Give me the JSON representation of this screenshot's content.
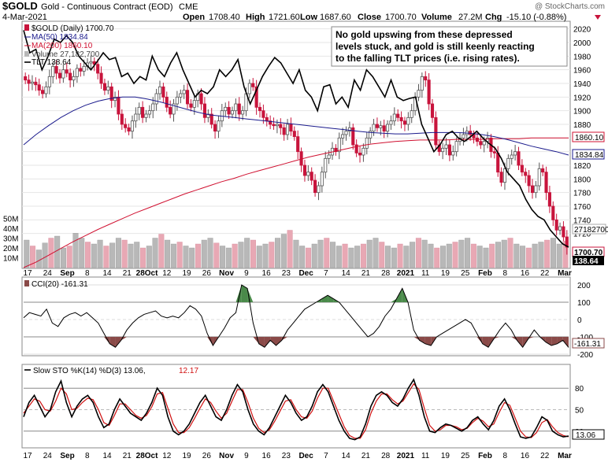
{
  "header": {
    "symbol": "$GOLD",
    "name": "Gold - Continuous Contract (EOD)",
    "exchange": "CME",
    "date": "4-Mar-2021",
    "open_label": "Open",
    "open": "1708.40",
    "high_label": "High",
    "high": "1721.60",
    "low_label": "Low",
    "low": "1687.60",
    "close_label": "Close",
    "close": "1700.70",
    "volume_label": "Volume",
    "volume": "27.2M",
    "chg_label": "Chg",
    "chg": "-15.10 (-0.88%)",
    "chg_icon": "down-triangle",
    "watermark": "@ StockCharts.com"
  },
  "legend": {
    "price": "$GOLD (Daily) 1700.70",
    "ma50": "MA(50) 1834.84",
    "ma200": "MA(200) 1860.10",
    "volume": "Volume 27,182,700",
    "tlt": "TLT 138.64"
  },
  "annotation": {
    "line1": "No gold upswing from these depressed",
    "line2": "levels stuck, and gold is still keenly reacting",
    "line3": "to the falling TLT prices (i.e. rising rates)."
  },
  "cci_label": "CCI(20) -161.31",
  "sto_label": "Slow STO %K(14) %D(3) 13.06,",
  "sto_label_d": "12.17",
  "colors": {
    "up": "#808080",
    "down": "#c8143c",
    "ma50": "#1a1a8c",
    "ma200": "#d01030",
    "tlt": "#000000",
    "vol_up": "#b8b8b8",
    "vol_down": "#e8a8b4",
    "cci_pos": "#4a8a4a",
    "cci_neg": "#8a4a48",
    "sto_d": "#d01010",
    "sto_k": "#000000"
  },
  "chart_data": [
    {
      "type": "candlestick",
      "title": "$GOLD (Daily) 1700.70",
      "ylim": [
        1670,
        2030
      ],
      "y_ticks": [
        2020,
        2000,
        1980,
        1960,
        1940,
        1920,
        1900,
        1880,
        1860,
        1840,
        1820,
        1800,
        1780,
        1760,
        1740,
        1720
      ],
      "x_tick_labels": [
        "17",
        "24",
        "Sep",
        "8",
        "14",
        "21",
        "28Oct",
        "12",
        "19",
        "26",
        "Nov",
        "9",
        "16",
        "23",
        "Dec",
        "7",
        "14",
        "21",
        "28",
        "2021",
        "11",
        "19",
        "25",
        "Feb",
        "8",
        "16",
        "22",
        "Mar"
      ],
      "close_series": [
        1945,
        1940,
        1942,
        1938,
        1930,
        1925,
        1935,
        1950,
        1965,
        1955,
        1948,
        1960,
        1955,
        1945,
        1950,
        1962,
        1958,
        1965,
        1970,
        1972,
        1968,
        1955,
        1940,
        1930,
        1935,
        1915,
        1920,
        1895,
        1880,
        1875,
        1870,
        1885,
        1895,
        1905,
        1890,
        1895,
        1900,
        1910,
        1925,
        1935,
        1920,
        1905,
        1895,
        1910,
        1920,
        1925,
        1930,
        1910,
        1905,
        1915,
        1925,
        1910,
        1890,
        1895,
        1880,
        1870,
        1885,
        1900,
        1905,
        1895,
        1900,
        1910,
        1895,
        1900,
        1925,
        1940,
        1935,
        1905,
        1900,
        1890,
        1885,
        1880,
        1878,
        1880,
        1875,
        1865,
        1880,
        1870,
        1862,
        1840,
        1820,
        1805,
        1810,
        1798,
        1780,
        1790,
        1810,
        1830,
        1835,
        1845,
        1840,
        1860,
        1865,
        1870,
        1875,
        1850,
        1838,
        1835,
        1845,
        1860,
        1870,
        1880,
        1875,
        1878,
        1870,
        1880,
        1885,
        1895,
        1890,
        1885,
        1880,
        1890,
        1900,
        1920,
        1930,
        1950,
        1945,
        1910,
        1890,
        1850,
        1840,
        1845,
        1850,
        1835,
        1840,
        1855,
        1860,
        1865,
        1870,
        1865,
        1860,
        1855,
        1850,
        1855,
        1860,
        1840,
        1838,
        1810,
        1795,
        1815,
        1830,
        1835,
        1840,
        1820,
        1810,
        1805,
        1790,
        1780,
        1790,
        1815,
        1810,
        1780,
        1760,
        1740,
        1725,
        1730,
        1715,
        1700
      ]
    },
    {
      "type": "line",
      "title": "MA(50) 1834.84",
      "values": [
        1850,
        1865,
        1878,
        1890,
        1900,
        1908,
        1914,
        1918,
        1920,
        1920,
        1917,
        1913,
        1908,
        1903,
        1898,
        1894,
        1892,
        1890,
        1888,
        1886,
        1884,
        1882,
        1880,
        1878,
        1876,
        1874,
        1872,
        1870,
        1868,
        1867,
        1866,
        1866,
        1867,
        1868,
        1868,
        1868,
        1867,
        1865,
        1862,
        1858,
        1853,
        1848,
        1844,
        1840,
        1835
      ]
    },
    {
      "type": "line",
      "title": "MA(200) 1860.10",
      "values": [
        1670,
        1678,
        1688,
        1698,
        1708,
        1717,
        1726,
        1734,
        1742,
        1750,
        1757,
        1764,
        1771,
        1778,
        1784,
        1790,
        1796,
        1801,
        1807,
        1812,
        1817,
        1822,
        1827,
        1832,
        1836,
        1840,
        1844,
        1848,
        1851,
        1853,
        1855,
        1856,
        1857,
        1857,
        1857,
        1858,
        1858,
        1858,
        1859,
        1859,
        1859,
        1860,
        1860,
        1860,
        1860
      ]
    },
    {
      "type": "line",
      "title": "TLT 138.64",
      "values": [
        2018,
        1985,
        1990,
        1960,
        1980,
        2005,
        2000,
        2010,
        2000,
        1980,
        1970,
        1960,
        1972,
        1985,
        1975,
        1978,
        1950,
        1955,
        1940,
        1950,
        1945,
        1980,
        1960,
        1950,
        1970,
        1985,
        1960,
        1940,
        1920,
        1930,
        1925,
        1935,
        1960,
        1950,
        1960,
        1975,
        1935,
        1910,
        1930,
        1950,
        1965,
        1978,
        1970,
        1955,
        1940,
        1960,
        1930,
        1920,
        1900,
        1935,
        1938,
        1910,
        1920,
        1905,
        1945,
        1930,
        1960,
        1950,
        1935,
        1920,
        1945,
        1920,
        1915,
        1918,
        1920,
        1880,
        1860,
        1840,
        1850,
        1865,
        1870,
        1860,
        1855,
        1862,
        1870,
        1860,
        1852,
        1845,
        1830,
        1810,
        1800,
        1790,
        1770,
        1755,
        1745,
        1740,
        1725,
        1715,
        1705,
        1700
      ],
      "last": 138.64
    },
    {
      "type": "bar",
      "title": "Volume 27,182,700",
      "ylabel": "",
      "y_ticks": [
        "50M",
        "40M",
        "30M",
        "20M",
        "10M"
      ],
      "ylim": [
        0,
        60
      ],
      "values": [
        28,
        22,
        18,
        25,
        30,
        32,
        20,
        22,
        35,
        30,
        26,
        24,
        28,
        22,
        25,
        30,
        28,
        24,
        26,
        20,
        22,
        30,
        34,
        28,
        24,
        26,
        22,
        20,
        24,
        28,
        30,
        25,
        22,
        20,
        24,
        26,
        30,
        28,
        22,
        24,
        26,
        30,
        34,
        38,
        28,
        22,
        20,
        24,
        28,
        30,
        26,
        22,
        24,
        20,
        22,
        24,
        28,
        30,
        26,
        22,
        20,
        24,
        22,
        26,
        30,
        28,
        24,
        20,
        22,
        24,
        26,
        28,
        30,
        24,
        22,
        20,
        24,
        26,
        28,
        30,
        24,
        22,
        20,
        24,
        26,
        28,
        30,
        24,
        27
      ],
      "last_label": "27182700"
    },
    {
      "type": "area",
      "title": "CCI(20) -161.31",
      "ylim": [
        -200,
        200
      ],
      "y_ticks": [
        200,
        100,
        0,
        -100,
        -200
      ],
      "values": [
        10,
        40,
        30,
        20,
        60,
        -20,
        -40,
        10,
        30,
        40,
        20,
        40,
        10,
        -20,
        -80,
        -140,
        -160,
        -120,
        -60,
        -20,
        10,
        30,
        40,
        50,
        20,
        10,
        20,
        10,
        40,
        80,
        60,
        20,
        -80,
        -150,
        -100,
        -50,
        10,
        40,
        200,
        180,
        -20,
        -140,
        -160,
        -120,
        -150,
        -120,
        -60,
        -20,
        20,
        60,
        80,
        100,
        120,
        140,
        120,
        100,
        60,
        20,
        -20,
        -60,
        -100,
        -80,
        -40,
        20,
        60,
        120,
        180,
        100,
        -60,
        -120,
        -140,
        -150,
        -100,
        -80,
        -60,
        -40,
        -20,
        0,
        -20,
        -80,
        -140,
        -160,
        -110,
        -60,
        -20,
        -60,
        -120,
        -160,
        -110,
        -60,
        -100,
        -130,
        -150,
        -140,
        -120,
        -161
      ],
      "last": -161.31
    },
    {
      "type": "line",
      "title": "Slow STO %K(14) %D(3) 13.06, 12.17",
      "ylim": [
        0,
        100
      ],
      "y_ticks": [
        80,
        50,
        20
      ],
      "series": [
        {
          "name": "%K(14)",
          "values": [
            40,
            60,
            70,
            55,
            40,
            50,
            75,
            90,
            60,
            40,
            55,
            65,
            70,
            60,
            40,
            25,
            30,
            50,
            65,
            55,
            45,
            40,
            35,
            45,
            60,
            80,
            70,
            40,
            20,
            15,
            20,
            30,
            45,
            60,
            70,
            55,
            40,
            35,
            50,
            70,
            85,
            75,
            50,
            30,
            20,
            15,
            25,
            40,
            55,
            70,
            60,
            45,
            35,
            40,
            55,
            75,
            85,
            75,
            55,
            35,
            20,
            10,
            8,
            12,
            30,
            55,
            70,
            75,
            70,
            60,
            55,
            65,
            80,
            92,
            70,
            40,
            20,
            18,
            25,
            30,
            28,
            24,
            20,
            25,
            35,
            40,
            30,
            22,
            35,
            55,
            65,
            50,
            30,
            12,
            10,
            12,
            25,
            40,
            35,
            20,
            15,
            12,
            13.06
          ]
        },
        {
          "name": "%D(3)",
          "values": [
            45,
            55,
            65,
            62,
            50,
            48,
            62,
            80,
            72,
            50,
            52,
            60,
            66,
            64,
            50,
            32,
            28,
            42,
            58,
            58,
            50,
            42,
            38,
            42,
            54,
            72,
            74,
            52,
            30,
            18,
            18,
            25,
            38,
            52,
            65,
            60,
            48,
            38,
            45,
            62,
            78,
            78,
            60,
            38,
            24,
            18,
            22,
            34,
            48,
            62,
            64,
            50,
            40,
            38,
            48,
            66,
            80,
            80,
            62,
            44,
            26,
            14,
            10,
            10,
            22,
            45,
            62,
            72,
            72,
            64,
            58,
            62,
            74,
            86,
            78,
            52,
            28,
            20,
            22,
            28,
            28,
            26,
            22,
            24,
            32,
            38,
            34,
            26,
            30,
            46,
            60,
            56,
            38,
            20,
            12,
            11,
            18,
            32,
            36,
            26,
            18,
            14,
            12.17
          ]
        }
      ]
    }
  ]
}
